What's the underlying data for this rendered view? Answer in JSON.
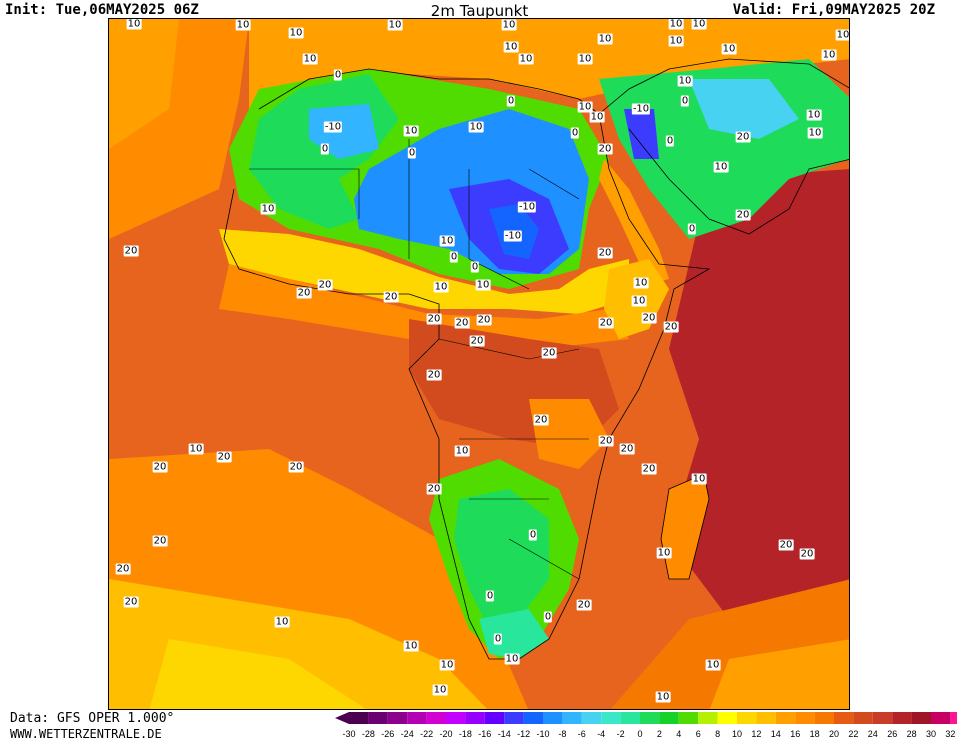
{
  "header": {
    "init": "Init: Tue,06MAY2025 06Z",
    "title": "2m Taupunkt",
    "valid": "Valid: Fri,09MAY2025 20Z"
  },
  "footer": {
    "source": "Data: GFS OPER 1.000°",
    "site": "WWW.WETTERZENTRALE.DE"
  },
  "legend": {
    "ticks": [
      "-30",
      "-28",
      "-26",
      "-24",
      "-22",
      "-20",
      "-18",
      "-16",
      "-14",
      "-12",
      "-10",
      "-8",
      "-6",
      "-4",
      "-2",
      "0",
      "2",
      "4",
      "6",
      "8",
      "10",
      "12",
      "14",
      "16",
      "18",
      "20",
      "22",
      "24",
      "26",
      "28",
      "30",
      "32"
    ],
    "colors": [
      "#4b0050",
      "#6a0072",
      "#8c008c",
      "#b400b4",
      "#d200d2",
      "#c300ff",
      "#9600ff",
      "#6400ff",
      "#3c3cff",
      "#1464ff",
      "#1e90ff",
      "#32b4ff",
      "#46d2f0",
      "#3ce6c8",
      "#28e69b",
      "#1edc5a",
      "#14d228",
      "#50dc00",
      "#b4f000",
      "#ffff00",
      "#ffd700",
      "#ffbe00",
      "#ffa000",
      "#ff8c00",
      "#f57800",
      "#e65a14",
      "#d24b1e",
      "#c83c28",
      "#b42328",
      "#a01428",
      "#c80064",
      "#ff1493"
    ],
    "arrow_low_color": "#4b0050",
    "arrow_high_color": "#ff1493"
  },
  "map_labels": [
    "10",
    "10",
    "10",
    "10",
    "10",
    "10",
    "10",
    "10",
    "10",
    "10",
    "10",
    "10",
    "10",
    "10",
    "-10",
    "10",
    "10",
    "10",
    "0",
    "10",
    "-10",
    "10",
    "0",
    "10",
    "20",
    "0",
    "10",
    "10",
    "0",
    "10",
    "0",
    "20",
    "0",
    "-10",
    "10",
    "20",
    "10",
    "0",
    "0",
    "-10",
    "10",
    "0",
    "20",
    "20",
    "10",
    "10",
    "0",
    "20",
    "20",
    "20",
    "20",
    "20",
    "10",
    "20",
    "20",
    "20",
    "20",
    "20",
    "20",
    "20",
    "20",
    "10",
    "20",
    "20",
    "20",
    "20",
    "20",
    "10",
    "20",
    "10",
    "20",
    "20",
    "0",
    "20",
    "10",
    "20",
    "20",
    "20",
    "0",
    "0",
    "0",
    "10",
    "10",
    "10",
    "10",
    "10",
    "10",
    "10",
    "10",
    "20"
  ]
}
